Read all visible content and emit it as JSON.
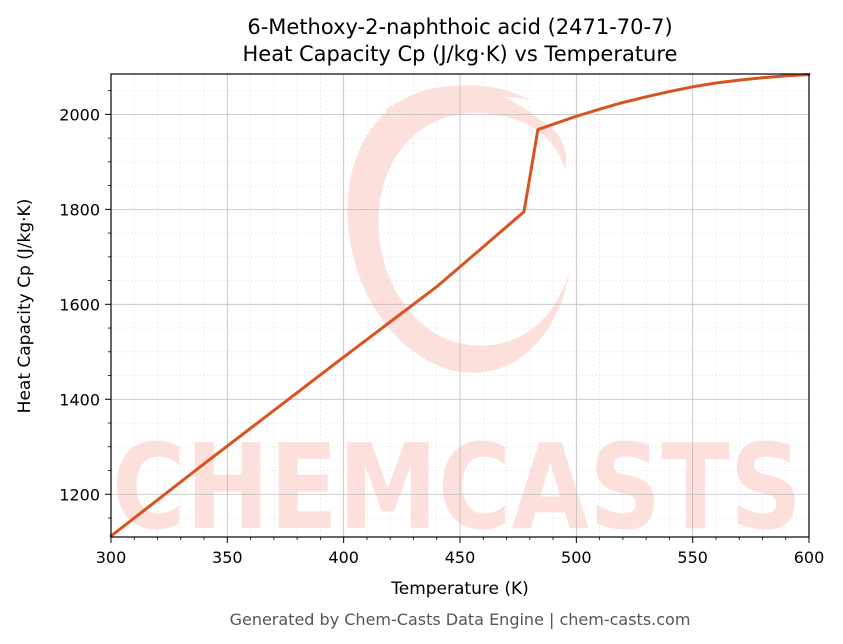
{
  "chart_data": {
    "type": "line",
    "title": "6-Methoxy-2-naphthoic acid (2471-70-7)",
    "subtitle": "Heat Capacity Cp (J/kg·K) vs Temperature",
    "xlabel": "Temperature (K)",
    "ylabel": "Heat Capacity Cp (J/kg·K)",
    "xlim": [
      300,
      600
    ],
    "ylim": [
      1110,
      2085
    ],
    "x_ticks": [
      300,
      350,
      400,
      450,
      500,
      550,
      600
    ],
    "y_ticks": [
      1200,
      1400,
      1600,
      1800,
      2000
    ],
    "grid": true,
    "line_color": "#d95322",
    "series": [
      {
        "x": [
          300,
          320,
          340,
          360,
          380,
          400,
          420,
          440,
          460,
          477.5,
          483.5,
          490,
          500,
          510,
          520,
          530,
          540,
          550,
          560,
          570,
          580,
          590,
          600
        ],
        "values": [
          1112,
          1188,
          1264,
          1339,
          1414,
          1489,
          1563,
          1637,
          1721,
          1795,
          1968,
          1979,
          1996,
          2011,
          2025,
          2037,
          2048,
          2058,
          2066,
          2072,
          2077,
          2081,
          2084
        ]
      }
    ]
  },
  "watermark": {
    "text": "CHEMCASTS",
    "color": "#fde0dc"
  },
  "footer": "Generated by Chem-Casts Data Engine | chem-casts.com"
}
